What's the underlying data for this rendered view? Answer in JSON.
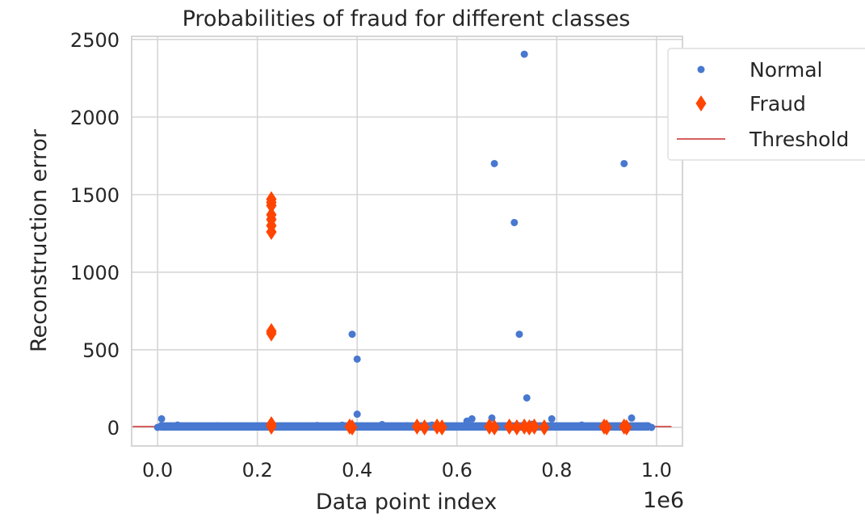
{
  "chart_data": {
    "type": "scatter",
    "title": "Probabilities of fraud for different classes",
    "xlabel": "Data point index",
    "ylabel": "Reconstruction error",
    "x_offset_label": "1e6",
    "xlim": [
      -0.052,
      1.052
    ],
    "ylim": [
      -120,
      2520
    ],
    "x_ticks": [
      0.0,
      0.2,
      0.4,
      0.6,
      0.8,
      1.0
    ],
    "x_tick_labels": [
      "0.0",
      "0.2",
      "0.4",
      "0.6",
      "0.8",
      "1.0"
    ],
    "y_ticks": [
      0,
      500,
      1000,
      1500,
      2000,
      2500
    ],
    "y_tick_labels": [
      "0",
      "500",
      "1000",
      "1500",
      "2000",
      "2500"
    ],
    "grid": true,
    "legend_position": "outside-top-right",
    "series": [
      {
        "name": "Normal",
        "marker": "circle",
        "color": "#4878d0",
        "points": [
          [
            0.0,
            0
          ],
          [
            0.008,
            55
          ],
          [
            0.04,
            15
          ],
          [
            0.12,
            10
          ],
          [
            0.2,
            8
          ],
          [
            0.32,
            12
          ],
          [
            0.37,
            14
          ],
          [
            0.39,
            600
          ],
          [
            0.4,
            440
          ],
          [
            0.4,
            85
          ],
          [
            0.45,
            18
          ],
          [
            0.5,
            10
          ],
          [
            0.55,
            15
          ],
          [
            0.62,
            40
          ],
          [
            0.63,
            55
          ],
          [
            0.67,
            60
          ],
          [
            0.675,
            1700
          ],
          [
            0.715,
            1320
          ],
          [
            0.725,
            600
          ],
          [
            0.735,
            2405
          ],
          [
            0.74,
            190
          ],
          [
            0.75,
            20
          ],
          [
            0.79,
            55
          ],
          [
            0.85,
            15
          ],
          [
            0.935,
            1700
          ],
          [
            0.95,
            60
          ],
          [
            0.98,
            10
          ],
          [
            0.99,
            0
          ]
        ],
        "baseline_band": {
          "x_range": [
            0.0,
            0.99
          ],
          "y_range": [
            0,
            12
          ]
        }
      },
      {
        "name": "Fraud",
        "marker": "diamond",
        "color": "#ff4500",
        "points": [
          [
            0.228,
            1470
          ],
          [
            0.228,
            1450
          ],
          [
            0.228,
            1430
          ],
          [
            0.228,
            1370
          ],
          [
            0.228,
            1340
          ],
          [
            0.228,
            1300
          ],
          [
            0.228,
            1260
          ],
          [
            0.228,
            620
          ],
          [
            0.228,
            605
          ],
          [
            0.228,
            5
          ],
          [
            0.228,
            20
          ],
          [
            0.385,
            5
          ],
          [
            0.39,
            0
          ],
          [
            0.52,
            5
          ],
          [
            0.535,
            0
          ],
          [
            0.56,
            5
          ],
          [
            0.57,
            0
          ],
          [
            0.665,
            5
          ],
          [
            0.675,
            0
          ],
          [
            0.705,
            5
          ],
          [
            0.72,
            0
          ],
          [
            0.735,
            5
          ],
          [
            0.745,
            0
          ],
          [
            0.755,
            5
          ],
          [
            0.775,
            0
          ],
          [
            0.895,
            5
          ],
          [
            0.9,
            0
          ],
          [
            0.935,
            5
          ],
          [
            0.94,
            0
          ]
        ]
      },
      {
        "name": "Threshold",
        "type": "line",
        "color": "#d65f5f",
        "y": 5,
        "x_range": [
          -0.05,
          1.03
        ]
      }
    ]
  }
}
